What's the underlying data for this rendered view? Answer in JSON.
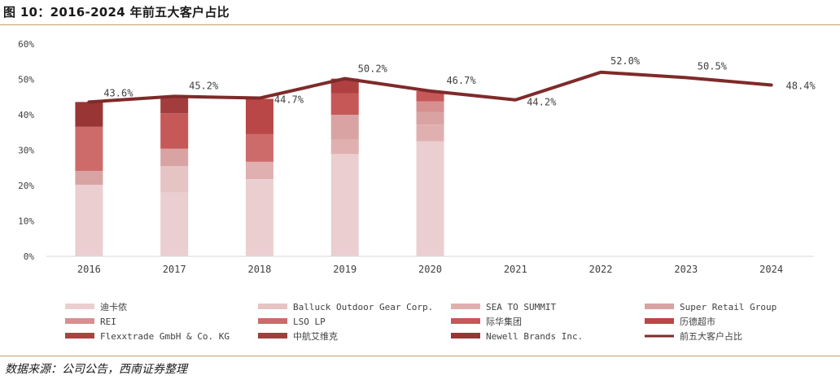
{
  "figure": {
    "title": "图 10：2016-2024 年前五大客户占比",
    "source": "数据来源：公司公告，西南证券整理"
  },
  "colors": {
    "rule": "#c9a063",
    "line": "#7f2a2a",
    "axis": "#d9d9d9",
    "text": "#404040"
  },
  "chart_data": {
    "type": "bar",
    "subtype": "stacked-bar-with-line",
    "title": "",
    "categories": [
      "2016",
      "2017",
      "2018",
      "2019",
      "2020",
      "2021",
      "2022",
      "2023",
      "2024"
    ],
    "ylim": [
      0,
      60
    ],
    "yticks": [
      "0%",
      "10%",
      "20%",
      "30%",
      "40%",
      "50%",
      "60%"
    ],
    "grid": false,
    "legend_position": "bottom",
    "series": [
      {
        "name": "迪卡侬",
        "color": "#ebcfd0",
        "values": [
          20.2,
          18.0,
          21.8,
          28.9,
          32.5,
          null,
          null,
          null,
          null
        ]
      },
      {
        "name": "Balluck Outdoor Gear Corp.",
        "color": "#e6c4c4",
        "values": [
          null,
          7.5,
          null,
          null,
          null,
          null,
          null,
          null,
          null
        ]
      },
      {
        "name": "SEA TO SUMMIT",
        "color": "#e0b0b0",
        "values": [
          null,
          null,
          4.9,
          4.2,
          4.7,
          null,
          null,
          null,
          null
        ]
      },
      {
        "name": "Super Retail Group",
        "color": "#d9a3a3",
        "values": [
          3.9,
          4.9,
          null,
          6.9,
          3.6,
          null,
          null,
          null,
          null
        ]
      },
      {
        "name": "REI",
        "color": "#d69090",
        "values": [
          null,
          null,
          null,
          null,
          3.0,
          null,
          null,
          null,
          null
        ]
      },
      {
        "name": "LSO LP",
        "color": "#cd6b6b",
        "values": [
          12.5,
          null,
          7.8,
          null,
          null,
          null,
          null,
          null,
          null
        ]
      },
      {
        "name": "际华集团",
        "color": "#c75858",
        "values": [
          null,
          10.0,
          null,
          6.0,
          2.9,
          null,
          null,
          null,
          null
        ]
      },
      {
        "name": "历德超市",
        "color": "#b94747",
        "values": [
          null,
          null,
          10.0,
          null,
          null,
          null,
          null,
          null,
          null
        ]
      },
      {
        "name": "Flexxtrade GmbH & Co. KG",
        "color": "#b04040",
        "values": [
          null,
          null,
          null,
          4.2,
          null,
          null,
          null,
          null,
          null
        ]
      },
      {
        "name": "中航艾维克",
        "color": "#a33d3d",
        "values": [
          null,
          4.8,
          null,
          null,
          null,
          null,
          null,
          null,
          null
        ]
      },
      {
        "name": "Newell Brands Inc.",
        "color": "#9a3535",
        "values": [
          7.0,
          null,
          null,
          null,
          null,
          null,
          null,
          null,
          null
        ]
      }
    ],
    "line_series": {
      "name": "前五大客户占比",
      "color": "#7f2a2a",
      "values": [
        43.6,
        45.2,
        44.7,
        50.2,
        46.7,
        44.2,
        52.0,
        50.5,
        48.4
      ],
      "labels": [
        "43.6%",
        "45.2%",
        "44.7%",
        "50.2%",
        "46.7%",
        "44.2%",
        "52.0%",
        "50.5%",
        "48.4%"
      ]
    }
  }
}
